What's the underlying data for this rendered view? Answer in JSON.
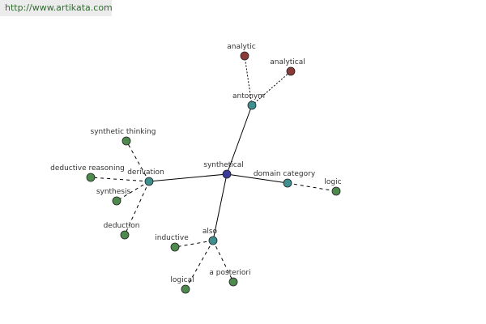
{
  "header": {
    "url": "http://www.artikata.com"
  },
  "nodes": [
    {
      "label": "synthetical"
    },
    {
      "label": "antonym"
    },
    {
      "label": "analytic"
    },
    {
      "label": "analytical"
    },
    {
      "label": "derivation"
    },
    {
      "label": "synthetic thinking"
    },
    {
      "label": "deductive reasoning"
    },
    {
      "label": "synthesis"
    },
    {
      "label": "deduction"
    },
    {
      "label": "domain category"
    },
    {
      "label": "logic"
    },
    {
      "label": "also"
    },
    {
      "label": "inductive"
    },
    {
      "label": "logical"
    },
    {
      "label": "a posteriori"
    }
  ]
}
